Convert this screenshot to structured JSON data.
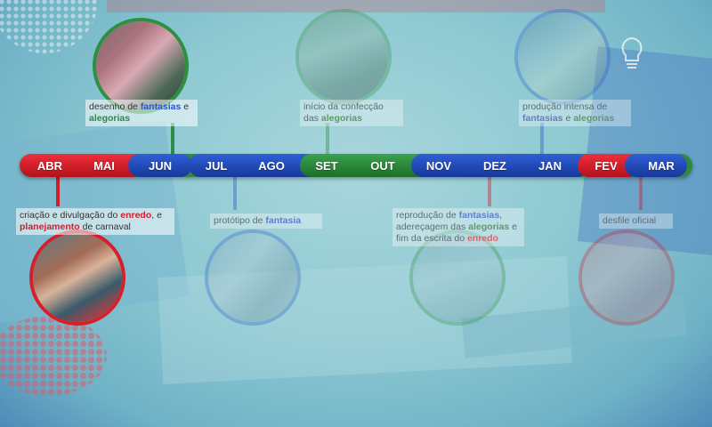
{
  "months": [
    "ABR",
    "MAI",
    "JUN",
    "JUL",
    "AGO",
    "SET",
    "OUT",
    "NOV",
    "DEZ",
    "JAN",
    "FEV",
    "MAR"
  ],
  "events": {
    "abr": {
      "parts": [
        {
          "text": "criação e divulgação do ",
          "style": ""
        },
        {
          "text": "enredo",
          "style": "red"
        },
        {
          "text": ", e ",
          "style": ""
        },
        {
          "text": "planejamento",
          "style": "red"
        },
        {
          "text": " de carnaval",
          "style": ""
        }
      ]
    },
    "mai_jun": {
      "parts": [
        {
          "text": "desenho de ",
          "style": ""
        },
        {
          "text": "fantasias",
          "style": "blue"
        },
        {
          "text": " e ",
          "style": ""
        },
        {
          "text": "alegorias",
          "style": "green"
        }
      ]
    },
    "jul": {
      "parts": [
        {
          "text": "protótipo de ",
          "style": ""
        },
        {
          "text": "fantasia",
          "style": "blue"
        }
      ]
    },
    "set": {
      "parts": [
        {
          "text": "início da confecção das ",
          "style": ""
        },
        {
          "text": "alegorias",
          "style": "green"
        }
      ]
    },
    "nov_dez": {
      "parts": [
        {
          "text": "reprodução de ",
          "style": ""
        },
        {
          "text": "fantasias",
          "style": "blue"
        },
        {
          "text": ", adereçagem das ",
          "style": ""
        },
        {
          "text": "alegorias",
          "style": "green"
        },
        {
          "text": " e fim da escrita do ",
          "style": ""
        },
        {
          "text": "enredo",
          "style": "red"
        }
      ]
    },
    "jan": {
      "parts": [
        {
          "text": "produção intensa de ",
          "style": ""
        },
        {
          "text": "fantasias",
          "style": "blue"
        },
        {
          "text": " e ",
          "style": ""
        },
        {
          "text": "alegorias",
          "style": "green"
        }
      ]
    },
    "fev": {
      "parts": [
        {
          "text": "desfile oficial",
          "style": ""
        }
      ]
    }
  }
}
